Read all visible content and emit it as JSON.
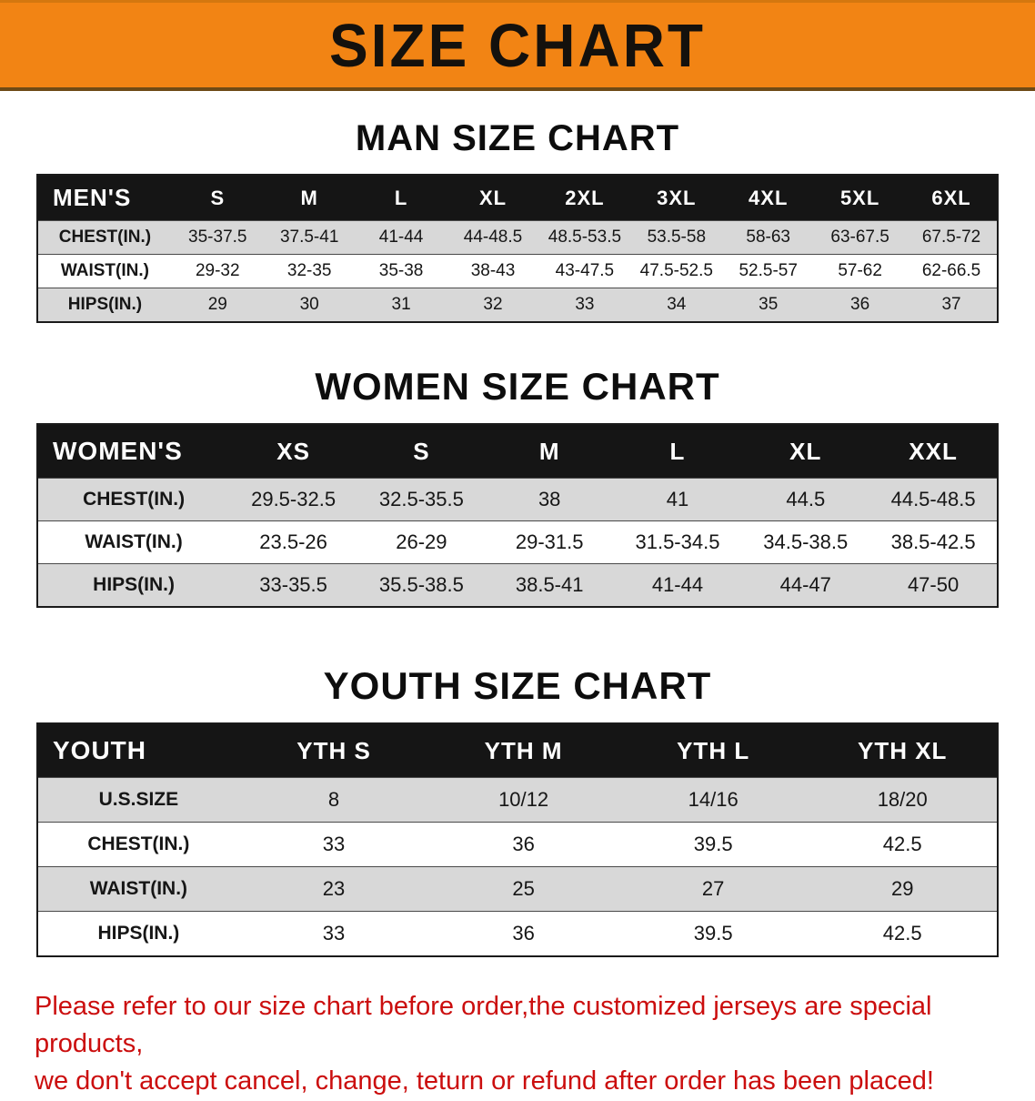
{
  "banner": {
    "title": "SIZE CHART"
  },
  "sections": [
    {
      "id": "mens",
      "heading": "MAN SIZE CHART",
      "corner_label": "MEN'S",
      "columns": [
        "S",
        "M",
        "L",
        "XL",
        "2XL",
        "3XL",
        "4XL",
        "5XL",
        "6XL"
      ],
      "rows": [
        {
          "label": "CHEST(IN.)",
          "values": [
            "35-37.5",
            "37.5-41",
            "41-44",
            "44-48.5",
            "48.5-53.5",
            "53.5-58",
            "58-63",
            "63-67.5",
            "67.5-72"
          ]
        },
        {
          "label": "WAIST(IN.)",
          "values": [
            "29-32",
            "32-35",
            "35-38",
            "38-43",
            "43-47.5",
            "47.5-52.5",
            "52.5-57",
            "57-62",
            "62-66.5"
          ]
        },
        {
          "label": "HIPS(IN.)",
          "values": [
            "29",
            "30",
            "31",
            "32",
            "33",
            "34",
            "35",
            "36",
            "37"
          ]
        }
      ]
    },
    {
      "id": "womens",
      "heading": "WOMEN SIZE CHART",
      "corner_label": "WOMEN'S",
      "columns": [
        "XS",
        "S",
        "M",
        "L",
        "XL",
        "XXL"
      ],
      "rows": [
        {
          "label": "CHEST(IN.)",
          "values": [
            "29.5-32.5",
            "32.5-35.5",
            "38",
            "41",
            "44.5",
            "44.5-48.5"
          ]
        },
        {
          "label": "WAIST(IN.)",
          "values": [
            "23.5-26",
            "26-29",
            "29-31.5",
            "31.5-34.5",
            "34.5-38.5",
            "38.5-42.5"
          ]
        },
        {
          "label": "HIPS(IN.)",
          "values": [
            "33-35.5",
            "35.5-38.5",
            "38.5-41",
            "41-44",
            "44-47",
            "47-50"
          ]
        }
      ]
    },
    {
      "id": "youth",
      "heading": "YOUTH SIZE CHART",
      "corner_label": "YOUTH",
      "columns": [
        "YTH S",
        "YTH M",
        "YTH L",
        "YTH XL"
      ],
      "rows": [
        {
          "label": "U.S.SIZE",
          "values": [
            "8",
            "10/12",
            "14/16",
            "18/20"
          ]
        },
        {
          "label": "CHEST(IN.)",
          "values": [
            "33",
            "36",
            "39.5",
            "42.5"
          ]
        },
        {
          "label": "WAIST(IN.)",
          "values": [
            "23",
            "25",
            "27",
            "29"
          ]
        },
        {
          "label": "HIPS(IN.)",
          "values": [
            "33",
            "36",
            "39.5",
            "42.5"
          ]
        }
      ]
    }
  ],
  "footer": {
    "line1": "Please refer to our size chart before order,the customized jerseys are special products,",
    "line2": "we don't accept cancel, change, teturn or refund after order has been placed!"
  },
  "colors": {
    "banner_bg": "#F28414",
    "header_bg": "#151515",
    "stripe": "#D8D8D8",
    "disclaimer": "#CB0E0E"
  }
}
